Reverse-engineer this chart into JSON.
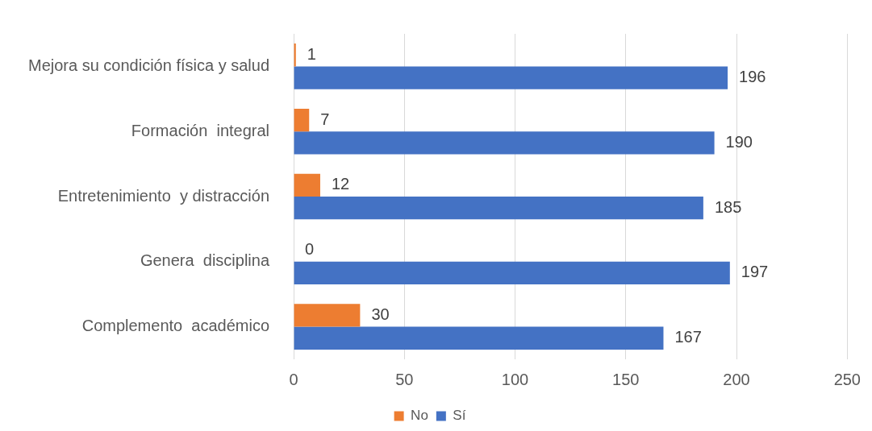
{
  "chart_data": {
    "type": "bar",
    "orientation": "horizontal",
    "categories": [
      "Mejora su condición física y salud",
      "Formación  integral",
      "Entretenimiento  y distracción",
      "Genera  disciplina",
      "Complemento  académico"
    ],
    "series": [
      {
        "name": "No",
        "color": "#ed7d31",
        "values": [
          1,
          7,
          12,
          0,
          30
        ]
      },
      {
        "name": "Sí",
        "color": "#4472c4",
        "values": [
          196,
          190,
          185,
          197,
          167
        ]
      }
    ],
    "xlim": [
      0,
      250
    ],
    "xticks": [
      0,
      50,
      100,
      150,
      200,
      250
    ],
    "grid": "x",
    "legend": "bottom",
    "data_labels": true
  }
}
